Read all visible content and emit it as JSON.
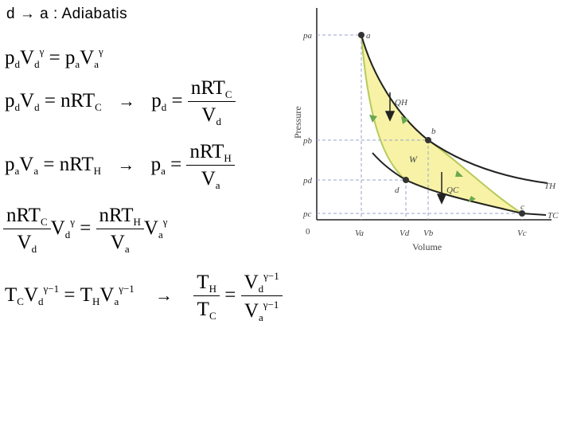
{
  "title": "d → a : Adiabatis",
  "icons": {
    "arrow": "right-arrow-icon"
  },
  "equations": {
    "eq1": {
      "pd": "p",
      "d": "d",
      "V": "V",
      "g": "γ",
      "eq": "=",
      "a": "a"
    },
    "eq2": {
      "lhs": "p",
      "dsub": "d",
      "V": "V",
      "rhs": "= nRT",
      "csub": "C",
      "arrow": "→",
      "p": "p",
      "eq": "=",
      "num": "nRT",
      "den": "V"
    },
    "eq3": {
      "asub": "a",
      "hsub": "H",
      "hsub2": "H"
    },
    "eq4": {
      "num": "nRT",
      "csub": "C",
      "hsub": "H",
      "den": "V",
      "dsub": "d",
      "asub": "a",
      "g": "γ",
      "eq": "="
    },
    "eq5": {
      "T": "T",
      "csub": "C",
      "hsub": "H",
      "V": "V",
      "gm1": "γ−1",
      "eq": "=",
      "arrow": "→"
    }
  },
  "diagram": {
    "ylabel": "Pressure",
    "xlabel": "Volume",
    "origin": "0",
    "ytick_labels": [
      "pa",
      "pb",
      "pd",
      "pc"
    ],
    "xtick_labels": [
      "Va",
      "Vd",
      "Vb",
      "Vc"
    ],
    "points": [
      "a",
      "b",
      "c",
      "d"
    ],
    "curve_labels": [
      "TH",
      "TC"
    ],
    "heat_labels": [
      "QH",
      "QC"
    ],
    "work_label": "W",
    "colors": {
      "cycle_fill": "#f7f2a6",
      "cycle_edge": "#b8c95a",
      "arrow": "#6aa84f",
      "curve": "#222222",
      "dashed": "#9aa6c8"
    }
  }
}
